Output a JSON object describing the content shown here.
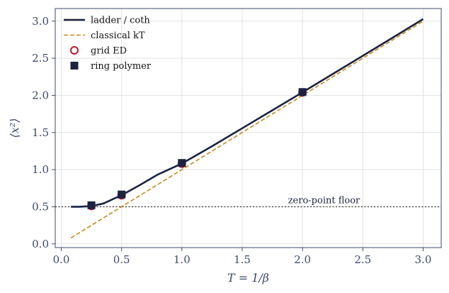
{
  "chart_data": {
    "type": "line",
    "xlabel": "T = 1/β",
    "ylabel": "⟨x²⟩",
    "xlim": [
      -0.05,
      3.15
    ],
    "ylim": [
      -0.05,
      3.17
    ],
    "x_ticks": [
      "0.0",
      "0.5",
      "1.0",
      "1.5",
      "2.0",
      "2.5",
      "3.0"
    ],
    "x_tick_values": [
      0,
      0.5,
      1,
      1.5,
      2,
      2.5,
      3
    ],
    "y_ticks": [
      "0.0",
      "0.5",
      "1.0",
      "1.5",
      "2.0",
      "2.5",
      "3.0"
    ],
    "y_tick_values": [
      0,
      0.5,
      1,
      1.5,
      2,
      2.5,
      3
    ],
    "grid": true,
    "legend_position": "top-left",
    "series": [
      {
        "name": "ladder / coth",
        "kind": "line",
        "style": "solid",
        "color": "#1b2340",
        "x": [
          0.08,
          0.15,
          0.25,
          0.35,
          0.5,
          0.65,
          0.8,
          1.0,
          1.25,
          1.5,
          1.75,
          2.0,
          2.25,
          2.5,
          2.75,
          3.0
        ],
        "y": [
          0.5,
          0.5,
          0.509,
          0.544,
          0.656,
          0.791,
          0.934,
          1.082,
          1.315,
          1.557,
          1.799,
          2.042,
          2.287,
          2.533,
          2.779,
          3.028
        ]
      },
      {
        "name": "classical kT",
        "kind": "line",
        "style": "dashed",
        "color": "#c8891c",
        "x": [
          0.08,
          3.0
        ],
        "y": [
          0.08,
          3.0
        ]
      },
      {
        "name": "grid ED",
        "kind": "marker-circle-open",
        "color": "#c0182b",
        "x": [
          0.25,
          0.5,
          1.0,
          2.0
        ],
        "y": [
          0.51,
          0.655,
          1.08,
          2.04
        ]
      },
      {
        "name": "ring polymer",
        "kind": "marker-square",
        "color": "#1b2340",
        "x": [
          0.25,
          0.5,
          1.0,
          2.0
        ],
        "y": [
          0.52,
          0.665,
          1.09,
          2.045
        ]
      }
    ],
    "reference_lines": [
      {
        "y": 0.5,
        "style": "dotted",
        "color": "#444444",
        "label": "zero-point floor",
        "label_x": 1.88
      }
    ]
  }
}
